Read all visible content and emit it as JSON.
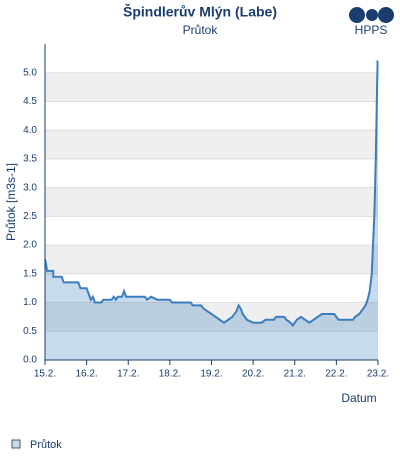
{
  "chart_data": {
    "type": "area",
    "title": "Špindlerův Mlýn (Labe)",
    "subtitle": "Průtok",
    "logo": "HPPS",
    "y_label": "Průtok [m3s-1]",
    "x_label": "Datum",
    "xlim": [
      15,
      23
    ],
    "xticks": [
      {
        "value": 15,
        "label": "15.2."
      },
      {
        "value": 16,
        "label": "16.2."
      },
      {
        "value": 17,
        "label": "17.2."
      },
      {
        "value": 18,
        "label": "18.2."
      },
      {
        "value": 19,
        "label": "19.2."
      },
      {
        "value": 20,
        "label": "20.2."
      },
      {
        "value": 21,
        "label": "21.2."
      },
      {
        "value": 22,
        "label": "22.2."
      },
      {
        "value": 23,
        "label": "23.2."
      }
    ],
    "ylim": [
      0,
      5.5
    ],
    "yticks": [
      {
        "value": 0,
        "label": "0.0"
      },
      0.5,
      {
        "value": 1,
        "label": "1.0"
      },
      1.5,
      {
        "value": 2,
        "label": "2.0"
      },
      2.5,
      {
        "value": 3,
        "label": "3.0"
      },
      3.5,
      {
        "value": 4,
        "label": "4.0"
      },
      4.5,
      {
        "value": 5,
        "label": "5.0"
      }
    ],
    "grid": true,
    "legend": "bottom-left",
    "series": [
      {
        "name": "Průtok",
        "color": "#3a7ebf",
        "x": [
          15.0,
          15.03,
          15.05,
          15.2,
          15.2,
          15.4,
          15.45,
          15.8,
          15.85,
          16.0,
          16.05,
          16.1,
          16.15,
          16.2,
          16.35,
          16.4,
          16.6,
          16.65,
          16.7,
          16.75,
          16.85,
          16.9,
          16.95,
          17.4,
          17.45,
          17.55,
          17.7,
          18.0,
          18.05,
          18.5,
          18.55,
          18.75,
          18.8,
          18.9,
          19.0,
          19.1,
          19.2,
          19.3,
          19.4,
          19.5,
          19.6,
          19.65,
          19.7,
          19.75,
          19.85,
          20.0,
          20.2,
          20.3,
          20.5,
          20.55,
          20.75,
          20.8,
          20.9,
          20.95,
          21.05,
          21.15,
          21.25,
          21.35,
          21.45,
          21.55,
          21.65,
          21.95,
          22.0,
          22.05,
          22.4,
          22.45,
          22.55,
          22.6,
          22.7,
          22.75,
          22.8,
          22.85,
          22.88,
          22.91,
          22.93,
          22.95,
          22.97,
          22.99,
          23.0
        ],
        "values": [
          1.75,
          1.65,
          1.55,
          1.55,
          1.45,
          1.45,
          1.35,
          1.35,
          1.25,
          1.25,
          1.15,
          1.05,
          1.1,
          1.0,
          1.0,
          1.05,
          1.05,
          1.1,
          1.05,
          1.1,
          1.1,
          1.2,
          1.1,
          1.1,
          1.05,
          1.1,
          1.05,
          1.05,
          1.0,
          1.0,
          0.95,
          0.95,
          0.9,
          0.85,
          0.8,
          0.75,
          0.7,
          0.65,
          0.7,
          0.75,
          0.85,
          0.95,
          0.9,
          0.8,
          0.7,
          0.65,
          0.65,
          0.7,
          0.7,
          0.75,
          0.75,
          0.7,
          0.65,
          0.6,
          0.7,
          0.75,
          0.7,
          0.65,
          0.7,
          0.75,
          0.8,
          0.8,
          0.75,
          0.7,
          0.7,
          0.75,
          0.8,
          0.85,
          0.95,
          1.05,
          1.2,
          1.5,
          2.0,
          2.5,
          3.0,
          3.6,
          4.5,
          5.2,
          5.2
        ]
      }
    ]
  }
}
